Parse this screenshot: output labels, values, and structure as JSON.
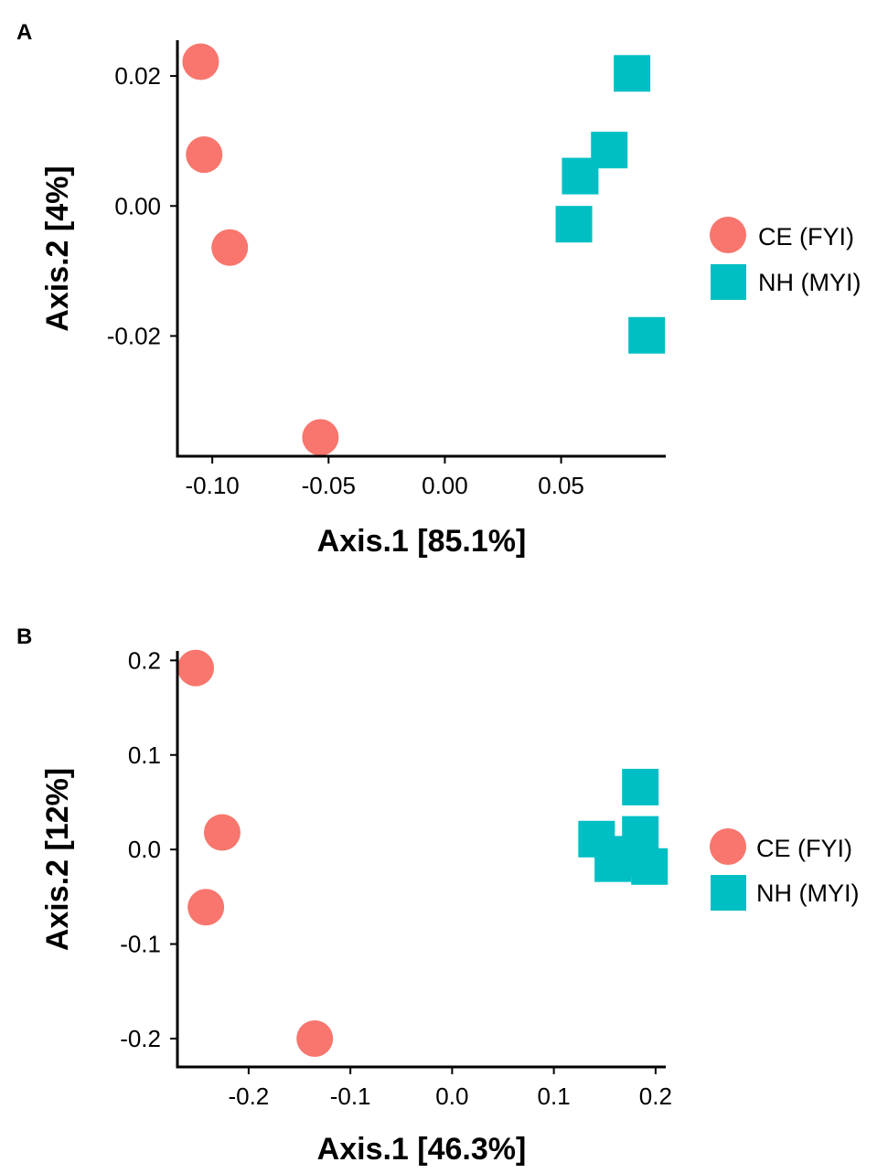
{
  "colors": {
    "ce": "#F8766D",
    "nh": "#00BFC4"
  },
  "chart_data": [
    {
      "type": "scatter",
      "panel_label": "A",
      "xlabel": "Axis.1   [85.1%]",
      "ylabel": "Axis.2   [4%]",
      "xlim": [
        -0.115,
        0.095
      ],
      "ylim": [
        -0.0385,
        0.0255
      ],
      "xticks": [
        -0.1,
        -0.05,
        0.0,
        0.05
      ],
      "xtick_labels": [
        "-0.10",
        "-0.05",
        "0.00",
        "0.05"
      ],
      "yticks": [
        -0.02,
        0.0,
        0.02
      ],
      "ytick_labels": [
        "-0.02",
        "0.00",
        "0.02"
      ],
      "legend_position": "right",
      "series": [
        {
          "name": "CE (FYI)",
          "shape": "circle",
          "color_key": "ce",
          "points": [
            [
              -0.105,
              0.0222
            ],
            [
              -0.1035,
              0.0079
            ],
            [
              -0.0925,
              -0.0064
            ],
            [
              -0.0535,
              -0.0356
            ]
          ]
        },
        {
          "name": "NH (MYI)",
          "shape": "square",
          "color_key": "nh",
          "points": [
            [
              0.0805,
              0.0204
            ],
            [
              0.0707,
              0.0086
            ],
            [
              0.0582,
              0.0046
            ],
            [
              0.0555,
              -0.0028
            ],
            [
              0.0868,
              -0.0199
            ]
          ]
        }
      ]
    },
    {
      "type": "scatter",
      "panel_label": "B",
      "xlabel": "Axis.1   [46.3%]",
      "ylabel": "Axis.2   [12%]",
      "xlim": [
        -0.27,
        0.21
      ],
      "ylim": [
        -0.23,
        0.21
      ],
      "xticks": [
        -0.2,
        -0.1,
        0.0,
        0.1,
        0.2
      ],
      "xtick_labels": [
        "-0.2",
        "-0.1",
        "0.0",
        "0.1",
        "0.2"
      ],
      "yticks": [
        -0.2,
        -0.1,
        0.0,
        0.1,
        0.2
      ],
      "ytick_labels": [
        "-0.2",
        "-0.1",
        "0.0",
        "0.1",
        "0.2"
      ],
      "legend_position": "right",
      "series": [
        {
          "name": "CE (FYI)",
          "shape": "circle",
          "color_key": "ce",
          "points": [
            [
              -0.252,
              0.192
            ],
            [
              -0.226,
              0.018
            ],
            [
              -0.242,
              -0.061
            ],
            [
              -0.135,
              -0.2
            ]
          ]
        },
        {
          "name": "NH (MYI)",
          "shape": "square",
          "color_key": "nh",
          "points": [
            [
              0.185,
              0.066
            ],
            [
              0.142,
              0.011
            ],
            [
              0.158,
              -0.015
            ],
            [
              0.185,
              0.016
            ],
            [
              0.172,
              -0.005
            ],
            [
              0.194,
              -0.018
            ],
            [
              0.178,
              -0.01
            ]
          ]
        }
      ]
    }
  ]
}
